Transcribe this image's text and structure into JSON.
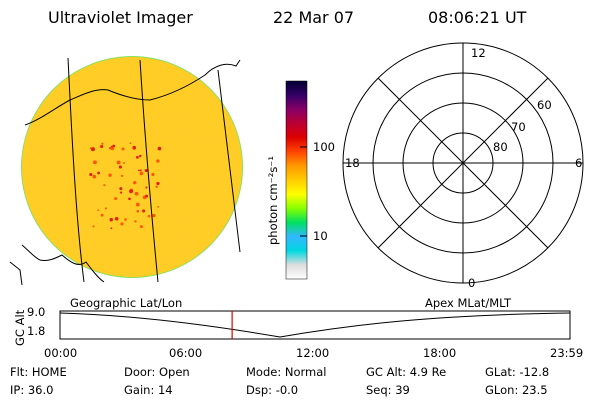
{
  "header": {
    "instrument": "Ultraviolet Imager",
    "date": "22 Mar 07",
    "time": "08:06:21 UT"
  },
  "colorbar": {
    "label": "photon cm⁻²s⁻¹",
    "ticks": [
      "100",
      "10"
    ],
    "stops": [
      "#ffffff",
      "#dddddd",
      "#00d8e0",
      "#33b8ff",
      "#00e060",
      "#88ff00",
      "#ffff00",
      "#ffcc00",
      "#ff9900",
      "#ff4400",
      "#dd0000",
      "#bb0033",
      "#880066",
      "#330066",
      "#000033"
    ]
  },
  "polar_plot": {
    "mlt_labels": [
      "12",
      "18",
      "6",
      "0"
    ],
    "lat_labels": [
      "60",
      "70",
      "80"
    ]
  },
  "map_labels": {
    "left": "Geographic Lat/Lon",
    "right": "Apex MLat/MLT"
  },
  "altitude_plot": {
    "ylabel": "GC Alt",
    "yticks": [
      "9.0",
      "1.8"
    ],
    "xticks": [
      "00:00",
      "06:00",
      "12:00",
      "18:00",
      "23:59"
    ],
    "marker_time_hours": 8.1,
    "marker_color": "#dd0000"
  },
  "footer": {
    "row1": [
      {
        "label": "Flt:",
        "value": "HOME"
      },
      {
        "label": "Door:",
        "value": "Open"
      },
      {
        "label": "Mode:",
        "value": "Normal"
      },
      {
        "label": "GC Alt:",
        "value": "4.9 Re"
      },
      {
        "label": "GLat:",
        "value": "-12.8"
      }
    ],
    "row2": [
      {
        "label": "IP:",
        "value": "36.0"
      },
      {
        "label": "Gain:",
        "value": "14"
      },
      {
        "label": "Dsp:",
        "value": "-0.0"
      },
      {
        "label": "Seq:",
        "value": "39"
      },
      {
        "label": "GLon:",
        "value": "23.5"
      }
    ]
  }
}
